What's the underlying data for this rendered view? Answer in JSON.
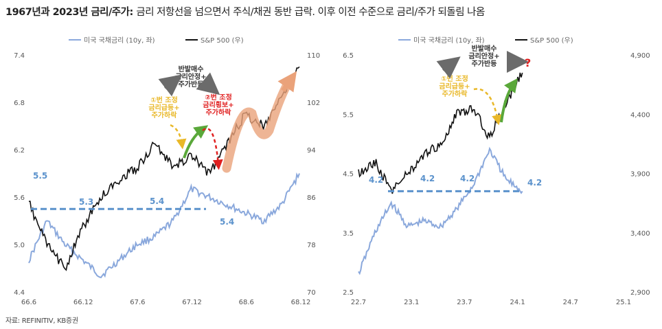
{
  "title_bold": "1967년과 2023년 금리/주가:",
  "title_rest": "금리 저항선을 넘으면서 주식/채권 동반 급락. 이후 이전 수준으로 금리/주가 되돌림 나옴",
  "source": "자료: REFINITIV, KB증권",
  "colors": {
    "rate": "#8aa8dc",
    "spx": "#111111",
    "level": "#5b92cc",
    "gray_arrow": "#6b6b6b",
    "yellow": "#e9b828",
    "green": "#5aa83a",
    "red": "#e02020",
    "orange": "#eaa27a"
  },
  "chart_data": [
    {
      "type": "line",
      "legend": [
        "미국 국채금리 (10y, 좌)",
        "S&P 500 (우)"
      ],
      "legend_position": "top",
      "x_ticks": [
        "66.6",
        "66.12",
        "67.6",
        "67.12",
        "68.6",
        "68.12"
      ],
      "y_left_ticks": [
        "7.4",
        "6.8",
        "6.2",
        "5.6",
        "5.0",
        "4.4"
      ],
      "y_left_range": [
        4.4,
        7.4
      ],
      "y_right_ticks": [
        "110",
        "102",
        "94",
        "86",
        "78",
        "70"
      ],
      "y_right_range": [
        70,
        110
      ],
      "grid": false,
      "x": [
        "66.6",
        "66.8",
        "66.10",
        "66.12",
        "67.2",
        "67.4",
        "67.6",
        "67.8",
        "67.10",
        "67.12",
        "68.2",
        "68.4",
        "68.6",
        "68.8",
        "68.10",
        "68.12"
      ],
      "series": [
        {
          "name": "미국 국채금리 (10y, 좌)",
          "axis": "left",
          "values": [
            4.8,
            5.3,
            5.0,
            4.8,
            4.6,
            4.8,
            5.0,
            5.1,
            5.3,
            5.7,
            5.6,
            5.5,
            5.4,
            5.3,
            5.5,
            5.9
          ]
        },
        {
          "name": "S&P 500 (우)",
          "axis": "right",
          "values": [
            85,
            78,
            74,
            81,
            86,
            89,
            91,
            95,
            91,
            93,
            90,
            95,
            100,
            98,
            103,
            108
          ]
        }
      ],
      "annotations": {
        "level_labels": [
          "5.5",
          "5.3",
          "5.4",
          "5.4"
        ],
        "level_value": 5.45,
        "top_label": "반발매수\n금리안정+\n주가반등",
        "step1": "①번 조정\n금리급등+\n주가하락",
        "step2": "②번 조정\n금리횡보+\n주가하락"
      }
    },
    {
      "type": "line",
      "legend": [
        "미국 국채금리 (10y, 좌)",
        "S&P 500 (우)"
      ],
      "legend_position": "top",
      "x_ticks": [
        "22.7",
        "23.1",
        "23.7",
        "24.1",
        "24.7",
        "25.1"
      ],
      "y_left_ticks": [
        "6.5",
        "5.5",
        "4.5",
        "3.5",
        "2.5"
      ],
      "y_left_range": [
        2.5,
        6.5
      ],
      "y_right_ticks": [
        "4,900",
        "4,400",
        "3,900",
        "3,400",
        "2,900"
      ],
      "y_right_range": [
        2900,
        4900
      ],
      "grid": false,
      "x": [
        "22.7",
        "22.9",
        "22.11",
        "23.1",
        "23.3",
        "23.5",
        "23.7",
        "23.9",
        "23.10",
        "23.11",
        "23.12"
      ],
      "series": [
        {
          "name": "미국 국채금리 (10y, 좌)",
          "axis": "left",
          "values": [
            2.8,
            3.5,
            4.0,
            3.6,
            3.7,
            3.6,
            3.9,
            4.3,
            4.9,
            4.4,
            4.2
          ]
        },
        {
          "name": "S&P 500 (우)",
          "axis": "right",
          "values": [
            3900,
            4000,
            3750,
            3900,
            4050,
            4150,
            4400,
            4450,
            4200,
            4500,
            4750
          ]
        }
      ],
      "annotations": {
        "level_labels": [
          "4.2",
          "4.2",
          "4.2",
          "4.2"
        ],
        "level_value": 4.2,
        "top_label": "반발매수\n금리안정+\n주가반등",
        "step1": "①번 조정\n금리급등+\n주가하락",
        "question": "?"
      }
    }
  ]
}
